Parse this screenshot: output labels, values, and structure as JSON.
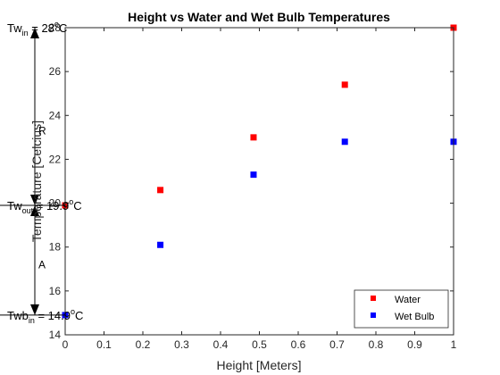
{
  "chart_data": {
    "type": "scatter",
    "title": "Height vs Water and Wet Bulb Temperatures",
    "xlabel": "Height [Meters]",
    "ylabel": "Temperature [Celcius]",
    "xlim": [
      0,
      1
    ],
    "ylim": [
      14,
      28
    ],
    "xticks": [
      0,
      0.1,
      0.2,
      0.3,
      0.4,
      0.5,
      0.6,
      0.7,
      0.8,
      0.9,
      1
    ],
    "xtick_labels": [
      "0",
      "0.1",
      "0.2",
      "0.3",
      "0.4",
      "0.5",
      "0.6",
      "0.7",
      "0.8",
      "0.9",
      "1"
    ],
    "yticks": [
      14,
      16,
      18,
      20,
      22,
      24,
      26,
      28
    ],
    "ytick_labels": [
      "14",
      "16",
      "18",
      "20",
      "22",
      "24",
      "26",
      "28"
    ],
    "grid": false,
    "legend_position": "bottom-right",
    "series": [
      {
        "name": "Water",
        "color": "#ff0000",
        "marker": "square",
        "x": [
          0,
          0.245,
          0.485,
          0.72,
          1.0
        ],
        "y": [
          19.9,
          20.6,
          23.0,
          25.4,
          28.0
        ]
      },
      {
        "name": "Wet Bulb",
        "color": "#0000ff",
        "marker": "square",
        "x": [
          0,
          0.245,
          0.485,
          0.72,
          1.0
        ],
        "y": [
          14.9,
          18.1,
          21.3,
          22.8,
          22.8
        ]
      }
    ],
    "annotations": {
      "arrow_x": 0,
      "arrow_top_y": 28,
      "arrow_mid_y": 19.9,
      "arrow_bottom_y": 14.9,
      "tw_in": {
        "main": "Tw",
        "sub": "in",
        "rest": " = 28",
        "sup": "o",
        "unit": "C",
        "y": 28.0
      },
      "tw_out": {
        "main": "Tw",
        "sub": "out",
        "rest": " = 19.9",
        "sup": "o",
        "unit": "C",
        "y": 19.9
      },
      "twb_in": {
        "main": "Twb",
        "sub": "in",
        "rest": " = 14.9",
        "sup": "o",
        "unit": "C",
        "y": 14.9
      },
      "label_r": {
        "text": "R",
        "y": 23.3
      },
      "label_a": {
        "text": "A",
        "y": 17.2
      }
    }
  }
}
